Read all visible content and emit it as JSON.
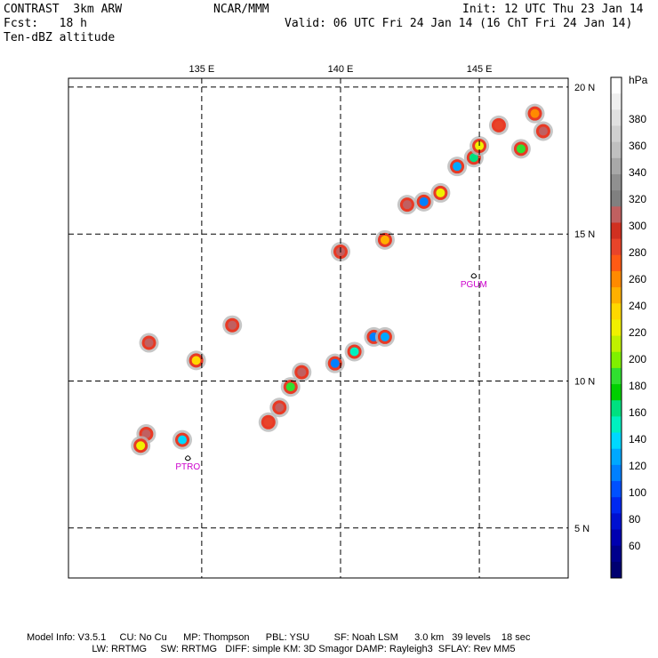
{
  "header": {
    "model": "CONTRAST  3km ARW",
    "forecast": "Fcst:   18 h",
    "field": "Ten-dBZ altitude",
    "center": "NCAR/MMM",
    "init": "Init: 12 UTC Thu 23 Jan 14",
    "valid": "Valid: 06 UTC Fri 24 Jan 14 (16 ChT Fri 24 Jan 14)"
  },
  "map": {
    "lon_range": [
      130.2,
      148.2
    ],
    "lat_range": [
      3.3,
      20.3
    ],
    "lon_ticks": [
      {
        "value": 135,
        "label": "135 E"
      },
      {
        "value": 140,
        "label": "140 E"
      },
      {
        "value": 145,
        "label": "145 E"
      }
    ],
    "lat_ticks": [
      {
        "value": 20,
        "label": "20 N"
      },
      {
        "value": 15,
        "label": "15 N"
      },
      {
        "value": 10,
        "label": "10 N"
      },
      {
        "value": 5,
        "label": "5 N"
      }
    ],
    "stations": [
      {
        "label": "PGUM",
        "lon": 144.8,
        "lat": 13.5
      },
      {
        "label": "PTRO",
        "lon": 134.5,
        "lat": 7.3
      }
    ],
    "echo_cells": [
      {
        "lon": 144.2,
        "lat": 17.3,
        "top_hpa": 130
      },
      {
        "lon": 144.8,
        "lat": 17.6,
        "top_hpa": 160
      },
      {
        "lon": 145.0,
        "lat": 18.0,
        "top_hpa": 220
      },
      {
        "lon": 145.7,
        "lat": 18.7,
        "top_hpa": 280
      },
      {
        "lon": 147.0,
        "lat": 19.1,
        "top_hpa": 250
      },
      {
        "lon": 147.3,
        "lat": 18.5,
        "top_hpa": 300
      },
      {
        "lon": 146.5,
        "lat": 17.9,
        "top_hpa": 190
      },
      {
        "lon": 143.0,
        "lat": 16.1,
        "top_hpa": 120
      },
      {
        "lon": 142.4,
        "lat": 16.0,
        "top_hpa": 300
      },
      {
        "lon": 143.6,
        "lat": 16.4,
        "top_hpa": 220
      },
      {
        "lon": 141.6,
        "lat": 14.8,
        "top_hpa": 240
      },
      {
        "lon": 140.0,
        "lat": 14.4,
        "top_hpa": 300
      },
      {
        "lon": 141.2,
        "lat": 11.5,
        "top_hpa": 110
      },
      {
        "lon": 141.6,
        "lat": 11.5,
        "top_hpa": 130
      },
      {
        "lon": 140.5,
        "lat": 11.0,
        "top_hpa": 150
      },
      {
        "lon": 139.8,
        "lat": 10.6,
        "top_hpa": 110
      },
      {
        "lon": 138.6,
        "lat": 10.3,
        "top_hpa": 300
      },
      {
        "lon": 137.8,
        "lat": 9.1,
        "top_hpa": 300
      },
      {
        "lon": 138.2,
        "lat": 9.8,
        "top_hpa": 190
      },
      {
        "lon": 137.4,
        "lat": 8.6,
        "top_hpa": 280
      },
      {
        "lon": 133.0,
        "lat": 8.2,
        "top_hpa": 300
      },
      {
        "lon": 132.8,
        "lat": 7.8,
        "top_hpa": 220
      },
      {
        "lon": 134.3,
        "lat": 8.0,
        "top_hpa": 140
      },
      {
        "lon": 133.1,
        "lat": 11.3,
        "top_hpa": 300
      },
      {
        "lon": 134.8,
        "lat": 10.7,
        "top_hpa": 230
      },
      {
        "lon": 136.1,
        "lat": 11.9,
        "top_hpa": 300
      }
    ]
  },
  "colorbar": {
    "unit": "hPa",
    "colors": [
      "#ffffff",
      "#efefef",
      "#e0e0e0",
      "#d0d0d0",
      "#c0c0c0",
      "#a8a8a8",
      "#909090",
      "#808080",
      "#c06060",
      "#d03020",
      "#e8442a",
      "#ff5a14",
      "#ff8a00",
      "#ffb000",
      "#ffd800",
      "#f0f000",
      "#c0f000",
      "#80f000",
      "#30e030",
      "#00d000",
      "#00e080",
      "#00f0c0",
      "#00d8ff",
      "#00a8ff",
      "#0080ff",
      "#0050ff",
      "#0028f0",
      "#0010d0",
      "#0000b0",
      "#00008c",
      "#000070"
    ],
    "labels": [
      "380",
      "360",
      "340",
      "320",
      "300",
      "280",
      "260",
      "240",
      "220",
      "200",
      "180",
      "160",
      "140",
      "120",
      "100",
      "80",
      "60"
    ]
  },
  "footer": {
    "line1": "Model Info: V3.5.1     CU: No Cu      MP: Thompson      PBL: YSU         SF: Noah LSM      3.0 km   39 levels    18 sec",
    "line2": "                        LW: RRTMG     SW: RRTMG   DIFF: simple KM: 3D Smagor DAMP: Rayleigh3  SFLAY: Rev MM5"
  }
}
